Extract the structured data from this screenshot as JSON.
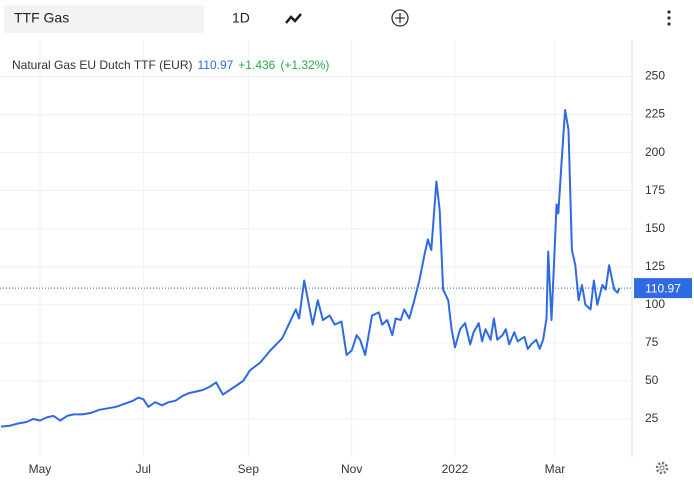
{
  "toolbar": {
    "symbol": "TTF Gas",
    "interval": "1D"
  },
  "chart_data": {
    "type": "line",
    "title": "Natural Gas EU Dutch TTF (EUR)",
    "last_value": 110.97,
    "change": "+1.436",
    "change_pct": "(+1.32%)",
    "color": "#2f6ae2",
    "grid": true,
    "xlim": [
      6.4,
      379.5
    ],
    "ylim": [
      0,
      274
    ],
    "xticks": [
      {
        "value": 30,
        "label": "May"
      },
      {
        "value": 91,
        "label": "Jul"
      },
      {
        "value": 153,
        "label": "Sep"
      },
      {
        "value": 214,
        "label": "Nov"
      },
      {
        "value": 275,
        "label": "2022"
      },
      {
        "value": 334,
        "label": "Mar"
      }
    ],
    "yticks": [
      25,
      50,
      75,
      100,
      125,
      150,
      175,
      200,
      225,
      250
    ],
    "series": [
      {
        "name": "TTF Gas",
        "color": "#2f6ae2",
        "x": [
          7,
          12,
          17,
          22,
          26,
          30,
          34,
          38,
          42,
          46,
          50,
          55,
          60,
          65,
          70,
          75,
          80,
          85,
          88,
          91,
          94,
          98,
          102,
          106,
          110,
          114,
          118,
          122,
          126,
          130,
          134,
          136,
          138,
          142,
          146,
          150,
          154,
          160,
          166,
          173,
          181,
          183,
          186,
          191,
          194,
          197,
          201,
          204,
          208,
          211,
          214,
          217,
          219,
          222,
          226,
          230,
          232,
          235,
          238,
          240,
          243,
          245,
          248,
          251,
          254,
          257,
          259,
          261,
          264,
          266,
          268,
          271,
          273,
          275,
          278,
          281,
          284,
          286,
          289,
          291,
          293,
          296,
          298,
          300,
          303,
          305,
          307,
          310,
          312,
          316,
          318,
          320,
          323,
          325,
          327,
          329,
          330,
          332,
          335,
          336,
          338,
          340,
          342,
          344,
          346,
          348,
          350,
          352,
          355,
          357,
          359,
          362,
          364,
          366,
          369,
          371,
          372
        ],
        "values": [
          20,
          20.5,
          22,
          23,
          25,
          24,
          26,
          27,
          24,
          27,
          28,
          28,
          29,
          31,
          32,
          33,
          35,
          37,
          39,
          38,
          33,
          36,
          34,
          36,
          37,
          40,
          42,
          43,
          44,
          46,
          49,
          45,
          41,
          44,
          47,
          50,
          57,
          62,
          70,
          78,
          97,
          91,
          116,
          87,
          103,
          90,
          93,
          87,
          89,
          67,
          70,
          80,
          77,
          67,
          93,
          95,
          87,
          90,
          80,
          91,
          90,
          97,
          91,
          103,
          116,
          133,
          143,
          136,
          181,
          162,
          110,
          103,
          84,
          72,
          84,
          88,
          74,
          82,
          88,
          76,
          84,
          77,
          91,
          77,
          80,
          84,
          74,
          82,
          76,
          79,
          71,
          74,
          77,
          71,
          77,
          91,
          135,
          90,
          166,
          160,
          195,
          228,
          215,
          136,
          126,
          103,
          113,
          100,
          97,
          116,
          100,
          113,
          110,
          126,
          110,
          108,
          111
        ]
      }
    ]
  }
}
